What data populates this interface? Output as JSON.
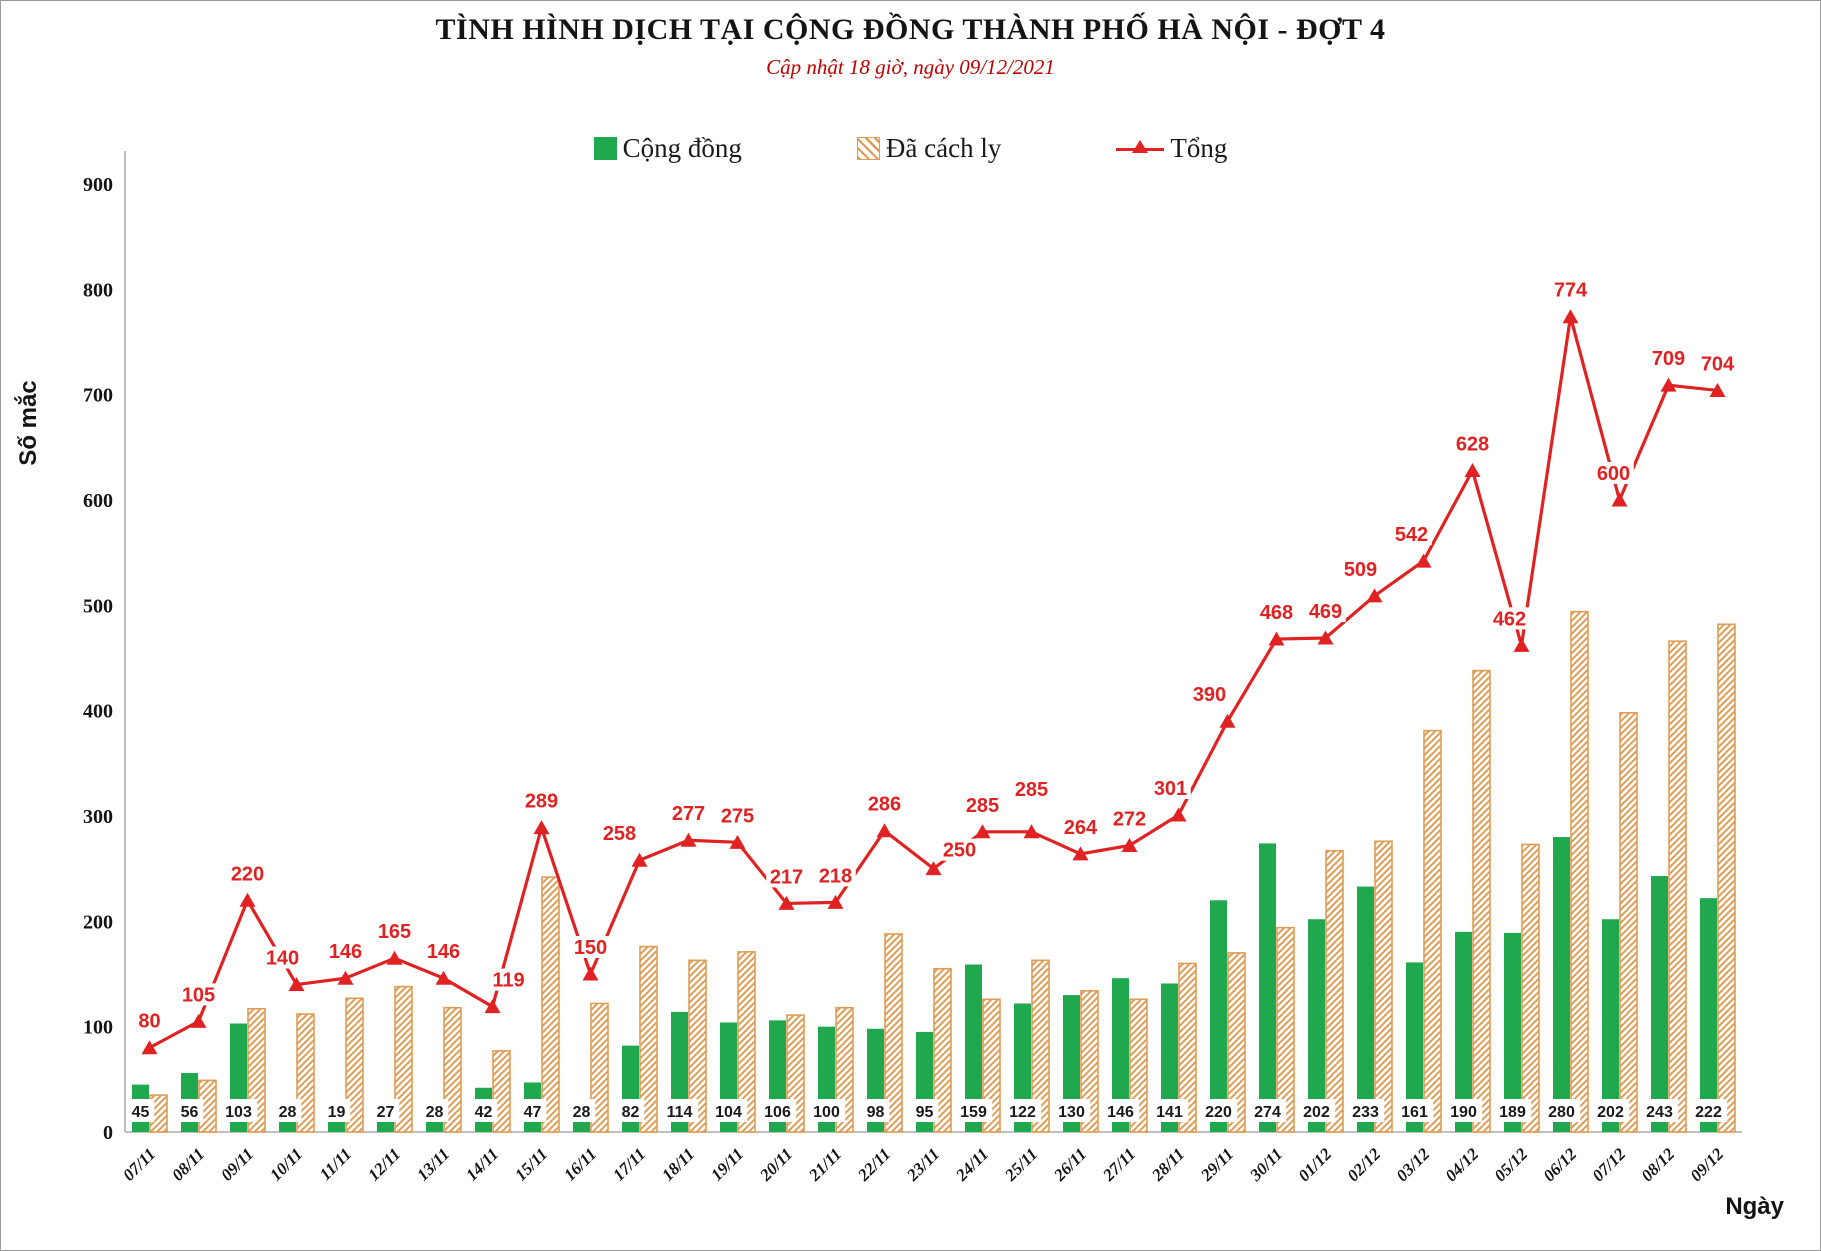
{
  "header": {
    "title": "TÌNH HÌNH DỊCH TẠI CỘNG ĐỒNG THÀNH PHỐ HÀ NỘI - ĐỢT 4",
    "subtitle": "Cập nhật 18 giờ, ngày 09/12/2021"
  },
  "legend": {
    "items": [
      {
        "label": "Cộng đồng",
        "swatch": "green-solid-square"
      },
      {
        "label": "Đã cách ly",
        "swatch": "orange-hatched-square"
      },
      {
        "label": "Tổng",
        "swatch": "red-line-with-triangle-marker"
      }
    ]
  },
  "colors": {
    "community_green": "#1fa84d",
    "quarantine_orange": "#df9c55",
    "total_red": "#e02222",
    "subtitle_red": "#c00000",
    "axis_gray": "#ababab",
    "label_black": "#1a1a1a"
  },
  "chart_data": {
    "type": "bar",
    "subtype": "grouped bars + line overlay",
    "title": "TÌNH HÌNH DỊCH TẠI CỘNG ĐỒNG THÀNH PHỐ HÀ NỘI - ĐỢT 4",
    "subtitle": "Cập nhật 18 giờ, ngày 09/12/2021",
    "xlabel": "Ngày",
    "ylabel": "Số mắc",
    "ylim": [
      0,
      900
    ],
    "ytick_step": 100,
    "grid": false,
    "legend_position": "top",
    "categories": [
      "07/11",
      "08/11",
      "09/11",
      "10/11",
      "11/11",
      "12/11",
      "13/11",
      "14/11",
      "15/11",
      "16/11",
      "17/11",
      "18/11",
      "19/11",
      "20/11",
      "21/11",
      "22/11",
      "23/11",
      "24/11",
      "25/11",
      "26/11",
      "27/11",
      "28/11",
      "29/11",
      "30/11",
      "01/12",
      "02/12",
      "03/12",
      "04/12",
      "05/12",
      "06/12",
      "07/12",
      "08/12",
      "09/12"
    ],
    "series": [
      {
        "name": "Cộng đồng",
        "type": "bar",
        "style": "solid",
        "color": "#1fa84d",
        "labels_shown": "at bar base, black on white box",
        "values": [
          45,
          56,
          103,
          28,
          19,
          27,
          28,
          42,
          47,
          28,
          82,
          114,
          104,
          106,
          100,
          98,
          95,
          159,
          122,
          130,
          146,
          141,
          220,
          274,
          202,
          233,
          161,
          190,
          189,
          280,
          202,
          243,
          222
        ]
      },
      {
        "name": "Đã cách ly",
        "type": "bar",
        "style": "hatched",
        "color": "#df9c55",
        "labels_shown": "none",
        "values": [
          35,
          49,
          117,
          112,
          127,
          138,
          118,
          77,
          242,
          122,
          176,
          163,
          171,
          111,
          118,
          188,
          155,
          126,
          163,
          134,
          126,
          160,
          170,
          194,
          267,
          276,
          381,
          438,
          273,
          494,
          398,
          466,
          482
        ]
      },
      {
        "name": "Tổng",
        "type": "line",
        "marker": "triangle",
        "color": "#e02222",
        "labels_shown": "above markers, red",
        "values": [
          80,
          105,
          220,
          140,
          146,
          165,
          146,
          119,
          289,
          150,
          258,
          277,
          275,
          217,
          218,
          286,
          250,
          285,
          285,
          264,
          272,
          301,
          390,
          468,
          469,
          509,
          542,
          628,
          462,
          774,
          600,
          709,
          704
        ]
      }
    ]
  }
}
